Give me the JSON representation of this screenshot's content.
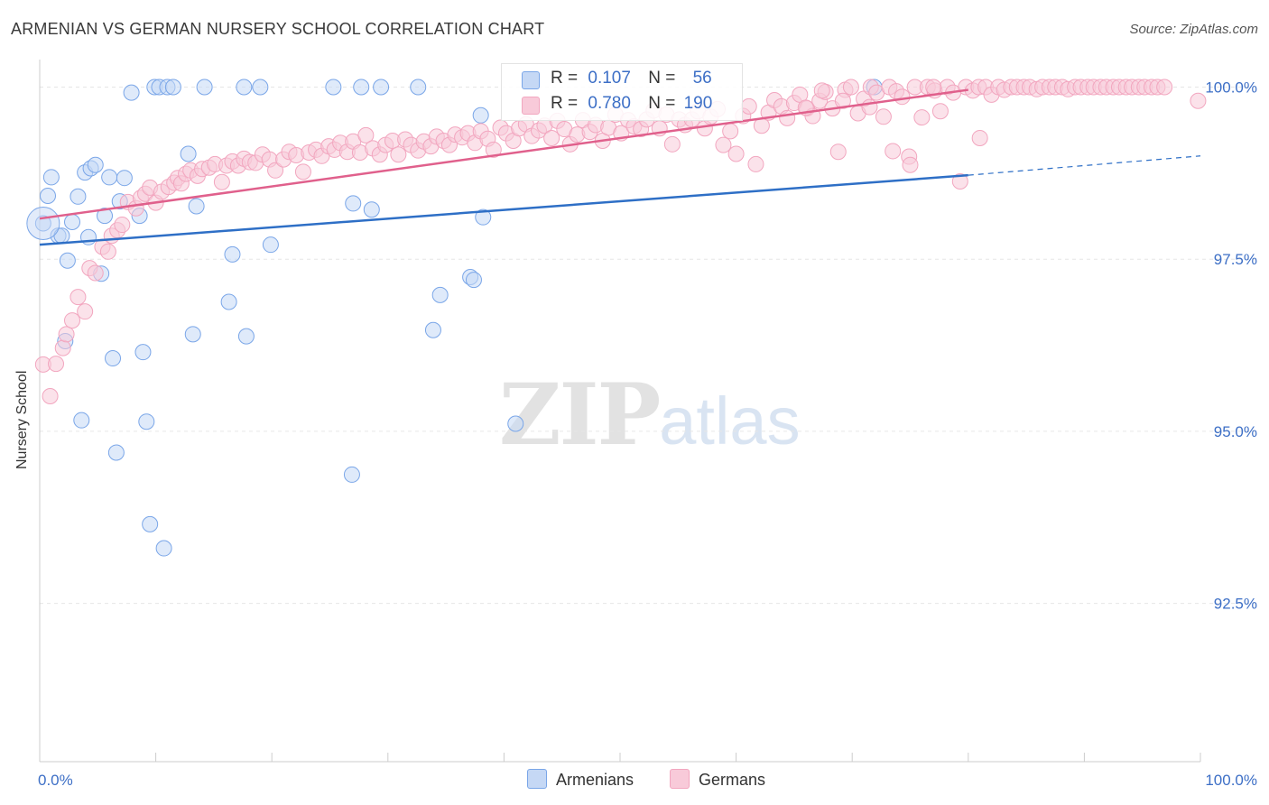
{
  "title": "ARMENIAN VS GERMAN NURSERY SCHOOL CORRELATION CHART",
  "source": "Source: ZipAtlas.com",
  "watermark": {
    "zip": "ZIP",
    "atlas": "atlas"
  },
  "chart_data": {
    "type": "scatter",
    "ylabel": "Nursery School",
    "xlim": [
      0,
      100
    ],
    "ylim": [
      90.2,
      100.4
    ],
    "x_tick_labels": [
      {
        "value": 0,
        "label": "0.0%"
      },
      {
        "value": 100,
        "label": "100.0%"
      }
    ],
    "y_tick_labels": [
      {
        "value": 100.0,
        "label": "100.0%"
      },
      {
        "value": 97.5,
        "label": "97.5%"
      },
      {
        "value": 95.0,
        "label": "95.0%"
      },
      {
        "value": 92.5,
        "label": "92.5%"
      }
    ],
    "grid": true,
    "legend_position": "top-center",
    "series": [
      {
        "name": "Armenians",
        "color": "#7aa6e8",
        "fill": "#c5d8f5",
        "line_color": "#2e6fc6",
        "stats": {
          "r_label": "R =",
          "r": "0.107",
          "n_label": "N =",
          "n": "56"
        },
        "trend": {
          "x0": 0,
          "y0": 97.71,
          "x1": 80,
          "y1": 98.72,
          "dash_to_x": 100,
          "dash_to_y": 99.0
        },
        "points": [
          [
            0.3,
            98.02
          ],
          [
            0.7,
            98.42
          ],
          [
            1.0,
            98.69
          ],
          [
            1.6,
            97.84
          ],
          [
            1.9,
            97.84
          ],
          [
            2.2,
            96.31
          ],
          [
            2.4,
            97.48
          ],
          [
            2.8,
            98.04
          ],
          [
            3.3,
            98.41
          ],
          [
            3.6,
            95.16
          ],
          [
            3.9,
            98.76
          ],
          [
            4.2,
            97.82
          ],
          [
            4.4,
            98.82
          ],
          [
            4.8,
            98.87
          ],
          [
            5.3,
            97.29
          ],
          [
            5.6,
            98.13
          ],
          [
            6.0,
            98.69
          ],
          [
            6.3,
            96.06
          ],
          [
            6.6,
            94.69
          ],
          [
            6.9,
            98.34
          ],
          [
            7.3,
            98.68
          ],
          [
            7.9,
            99.92
          ],
          [
            8.6,
            98.13
          ],
          [
            8.9,
            96.15
          ],
          [
            9.2,
            95.14
          ],
          [
            9.5,
            93.65
          ],
          [
            9.9,
            100.0
          ],
          [
            10.3,
            100.0
          ],
          [
            10.7,
            93.3
          ],
          [
            11.0,
            100.0
          ],
          [
            11.5,
            100.0
          ],
          [
            12.8,
            99.03
          ],
          [
            13.2,
            96.41
          ],
          [
            13.5,
            98.27
          ],
          [
            14.2,
            100.0
          ],
          [
            16.6,
            97.57
          ],
          [
            16.3,
            96.88
          ],
          [
            17.6,
            100.0
          ],
          [
            17.8,
            96.38
          ],
          [
            19.0,
            100.0
          ],
          [
            19.9,
            97.71
          ],
          [
            25.3,
            100.0
          ],
          [
            26.9,
            94.37
          ],
          [
            27.0,
            98.31
          ],
          [
            27.7,
            100.0
          ],
          [
            28.6,
            98.22
          ],
          [
            29.4,
            100.0
          ],
          [
            32.6,
            100.0
          ],
          [
            33.9,
            96.47
          ],
          [
            34.5,
            96.98
          ],
          [
            37.1,
            97.24
          ],
          [
            37.4,
            97.2
          ],
          [
            38.0,
            99.59
          ],
          [
            38.2,
            98.11
          ],
          [
            41.0,
            95.11
          ],
          [
            71.9,
            100.0
          ]
        ]
      },
      {
        "name": "Germans",
        "color": "#f2a6bf",
        "fill": "#f8cad9",
        "line_color": "#e0608c",
        "stats": {
          "r_label": "R =",
          "r": "0.780",
          "n_label": "N =",
          "n": "190"
        },
        "trend": {
          "x0": 0,
          "y0": 98.09,
          "x1": 80,
          "y1": 99.96
        },
        "points": [
          [
            0.3,
            95.97
          ],
          [
            0.9,
            95.51
          ],
          [
            1.4,
            95.98
          ],
          [
            2.0,
            96.21
          ],
          [
            2.3,
            96.41
          ],
          [
            2.8,
            96.61
          ],
          [
            3.3,
            96.95
          ],
          [
            3.9,
            96.74
          ],
          [
            4.3,
            97.37
          ],
          [
            4.8,
            97.3
          ],
          [
            5.4,
            97.68
          ],
          [
            5.9,
            97.61
          ],
          [
            6.2,
            97.84
          ],
          [
            6.7,
            97.92
          ],
          [
            7.1,
            98.0
          ],
          [
            7.6,
            98.33
          ],
          [
            8.3,
            98.24
          ],
          [
            8.7,
            98.39
          ],
          [
            9.1,
            98.45
          ],
          [
            9.5,
            98.54
          ],
          [
            10.0,
            98.32
          ],
          [
            10.5,
            98.48
          ],
          [
            11.1,
            98.55
          ],
          [
            11.6,
            98.61
          ],
          [
            11.9,
            98.68
          ],
          [
            12.2,
            98.6
          ],
          [
            12.6,
            98.74
          ],
          [
            13.0,
            98.79
          ],
          [
            13.6,
            98.71
          ],
          [
            14.0,
            98.81
          ],
          [
            14.6,
            98.83
          ],
          [
            15.1,
            98.88
          ],
          [
            15.7,
            98.62
          ],
          [
            16.1,
            98.86
          ],
          [
            16.6,
            98.92
          ],
          [
            17.1,
            98.86
          ],
          [
            17.6,
            98.96
          ],
          [
            18.1,
            98.91
          ],
          [
            18.6,
            98.9
          ],
          [
            19.2,
            99.02
          ],
          [
            19.8,
            98.95
          ],
          [
            20.3,
            98.79
          ],
          [
            21.0,
            98.95
          ],
          [
            21.5,
            99.06
          ],
          [
            22.1,
            99.01
          ],
          [
            22.7,
            98.77
          ],
          [
            23.2,
            99.05
          ],
          [
            23.8,
            99.09
          ],
          [
            24.3,
            99.0
          ],
          [
            24.9,
            99.14
          ],
          [
            25.4,
            99.09
          ],
          [
            25.9,
            99.19
          ],
          [
            26.5,
            99.06
          ],
          [
            27.0,
            99.21
          ],
          [
            27.6,
            99.05
          ],
          [
            28.1,
            99.3
          ],
          [
            28.7,
            99.11
          ],
          [
            29.3,
            99.02
          ],
          [
            29.8,
            99.16
          ],
          [
            30.4,
            99.22
          ],
          [
            30.9,
            99.02
          ],
          [
            31.5,
            99.24
          ],
          [
            32.0,
            99.16
          ],
          [
            32.6,
            99.08
          ],
          [
            33.1,
            99.21
          ],
          [
            33.7,
            99.14
          ],
          [
            34.2,
            99.28
          ],
          [
            34.8,
            99.22
          ],
          [
            35.3,
            99.16
          ],
          [
            35.8,
            99.31
          ],
          [
            36.4,
            99.27
          ],
          [
            36.9,
            99.33
          ],
          [
            37.5,
            99.19
          ],
          [
            38.0,
            99.36
          ],
          [
            38.6,
            99.25
          ],
          [
            39.1,
            99.09
          ],
          [
            39.7,
            99.41
          ],
          [
            40.2,
            99.33
          ],
          [
            40.8,
            99.22
          ],
          [
            41.3,
            99.4
          ],
          [
            41.9,
            99.46
          ],
          [
            42.4,
            99.29
          ],
          [
            43.0,
            99.37
          ],
          [
            43.5,
            99.44
          ],
          [
            44.1,
            99.26
          ],
          [
            44.6,
            99.51
          ],
          [
            45.2,
            99.39
          ],
          [
            45.7,
            99.17
          ],
          [
            46.3,
            99.31
          ],
          [
            46.8,
            99.52
          ],
          [
            47.4,
            99.35
          ],
          [
            47.9,
            99.45
          ],
          [
            48.5,
            99.22
          ],
          [
            49.0,
            99.41
          ],
          [
            49.6,
            99.6
          ],
          [
            50.1,
            99.33
          ],
          [
            50.7,
            99.52
          ],
          [
            51.2,
            99.43
          ],
          [
            51.8,
            99.39
          ],
          [
            52.3,
            99.53
          ],
          [
            52.9,
            99.66
          ],
          [
            53.4,
            99.4
          ],
          [
            54.0,
            99.6
          ],
          [
            54.5,
            99.17
          ],
          [
            55.1,
            99.53
          ],
          [
            55.6,
            99.45
          ],
          [
            56.2,
            99.53
          ],
          [
            56.7,
            99.65
          ],
          [
            57.3,
            99.4
          ],
          [
            57.8,
            99.57
          ],
          [
            58.4,
            99.68
          ],
          [
            58.9,
            99.16
          ],
          [
            59.5,
            99.36
          ],
          [
            60.0,
            99.03
          ],
          [
            60.6,
            99.58
          ],
          [
            61.1,
            99.72
          ],
          [
            61.7,
            98.88
          ],
          [
            62.2,
            99.44
          ],
          [
            62.8,
            99.63
          ],
          [
            63.3,
            99.81
          ],
          [
            63.9,
            99.72
          ],
          [
            64.4,
            99.55
          ],
          [
            65.0,
            99.77
          ],
          [
            65.5,
            99.89
          ],
          [
            66.1,
            99.69
          ],
          [
            66.6,
            99.58
          ],
          [
            67.2,
            99.8
          ],
          [
            67.7,
            99.93
          ],
          [
            68.3,
            99.69
          ],
          [
            68.8,
            99.06
          ],
          [
            69.4,
            99.96
          ],
          [
            69.9,
            100.0
          ],
          [
            70.5,
            99.62
          ],
          [
            71.0,
            99.83
          ],
          [
            71.6,
            100.0
          ],
          [
            72.1,
            99.92
          ],
          [
            72.7,
            99.57
          ],
          [
            73.2,
            100.0
          ],
          [
            73.8,
            99.94
          ],
          [
            74.3,
            99.86
          ],
          [
            74.9,
            98.99
          ],
          [
            75.4,
            100.0
          ],
          [
            76.0,
            99.56
          ],
          [
            76.5,
            100.0
          ],
          [
            77.1,
            99.95
          ],
          [
            77.6,
            99.65
          ],
          [
            78.2,
            100.0
          ],
          [
            78.7,
            99.92
          ],
          [
            79.3,
            98.63
          ],
          [
            79.8,
            100.0
          ],
          [
            80.4,
            99.95
          ],
          [
            80.9,
            100.0
          ],
          [
            81.5,
            100.0
          ],
          [
            82.0,
            99.89
          ],
          [
            82.6,
            100.0
          ],
          [
            83.1,
            99.96
          ],
          [
            83.7,
            100.0
          ],
          [
            84.2,
            100.0
          ],
          [
            84.8,
            100.0
          ],
          [
            85.3,
            100.0
          ],
          [
            85.9,
            99.97
          ],
          [
            86.4,
            100.0
          ],
          [
            87.0,
            100.0
          ],
          [
            87.5,
            100.0
          ],
          [
            88.1,
            100.0
          ],
          [
            88.6,
            99.97
          ],
          [
            89.2,
            100.0
          ],
          [
            89.7,
            100.0
          ],
          [
            90.3,
            100.0
          ],
          [
            90.8,
            100.0
          ],
          [
            91.4,
            100.0
          ],
          [
            91.9,
            100.0
          ],
          [
            92.5,
            100.0
          ],
          [
            93.0,
            100.0
          ],
          [
            93.6,
            100.0
          ],
          [
            94.1,
            100.0
          ],
          [
            94.7,
            100.0
          ],
          [
            95.2,
            100.0
          ],
          [
            95.8,
            100.0
          ],
          [
            96.3,
            100.0
          ],
          [
            96.9,
            100.0
          ],
          [
            99.8,
            99.8
          ],
          [
            81.0,
            99.26
          ],
          [
            75.0,
            98.87
          ],
          [
            73.5,
            99.07
          ],
          [
            71.5,
            99.71
          ],
          [
            69.2,
            99.8
          ],
          [
            67.4,
            99.95
          ],
          [
            66.0,
            99.7
          ],
          [
            77.0,
            100.0
          ]
        ]
      }
    ]
  }
}
